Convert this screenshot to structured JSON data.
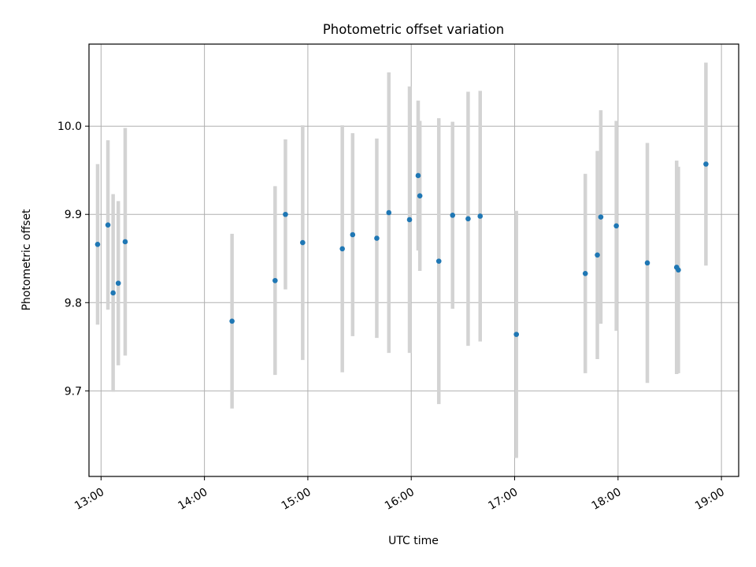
{
  "chart_data": {
    "type": "scatter",
    "title": "Photometric offset variation",
    "xlabel": "UTC time",
    "ylabel": "Photometric offset",
    "grid": true,
    "xlim": [
      "12:53",
      "19:10"
    ],
    "ylim": [
      9.603,
      10.093
    ],
    "x_ticks": [
      "13:00",
      "14:00",
      "15:00",
      "16:00",
      "17:00",
      "18:00",
      "19:00"
    ],
    "y_ticks": [
      "9.7",
      "9.8",
      "9.9",
      "10.0"
    ],
    "colors": {
      "points": "#1f77b4",
      "errorbars": "#d3d3d3",
      "grid": "#b0b0b0"
    },
    "points": [
      {
        "x": "12:58",
        "y": 9.866,
        "err": 0.091
      },
      {
        "x": "13:04",
        "y": 9.888,
        "err": 0.096
      },
      {
        "x": "13:07",
        "y": 9.811,
        "err": 0.112
      },
      {
        "x": "13:10",
        "y": 9.822,
        "err": 0.093
      },
      {
        "x": "13:14",
        "y": 9.869,
        "err": 0.129
      },
      {
        "x": "14:16",
        "y": 9.779,
        "err": 0.099
      },
      {
        "x": "14:41",
        "y": 9.825,
        "err": 0.107
      },
      {
        "x": "14:47",
        "y": 9.9,
        "err": 0.085
      },
      {
        "x": "14:57",
        "y": 9.868,
        "err": 0.133
      },
      {
        "x": "15:20",
        "y": 9.861,
        "err": 0.14
      },
      {
        "x": "15:26",
        "y": 9.877,
        "err": 0.115
      },
      {
        "x": "15:40",
        "y": 9.873,
        "err": 0.113
      },
      {
        "x": "15:47",
        "y": 9.902,
        "err": 0.159
      },
      {
        "x": "15:59",
        "y": 9.894,
        "err": 0.151
      },
      {
        "x": "16:04",
        "y": 9.944,
        "err": 0.085
      },
      {
        "x": "16:05",
        "y": 9.921,
        "err": 0.085
      },
      {
        "x": "16:16",
        "y": 9.847,
        "err": 0.162
      },
      {
        "x": "16:24",
        "y": 9.899,
        "err": 0.106
      },
      {
        "x": "16:33",
        "y": 9.895,
        "err": 0.144
      },
      {
        "x": "16:40",
        "y": 9.898,
        "err": 0.142
      },
      {
        "x": "17:01",
        "y": 9.764,
        "err": 0.14
      },
      {
        "x": "17:41",
        "y": 9.833,
        "err": 0.113
      },
      {
        "x": "17:48",
        "y": 9.854,
        "err": 0.118
      },
      {
        "x": "17:50",
        "y": 9.897,
        "err": 0.121
      },
      {
        "x": "17:59",
        "y": 9.887,
        "err": 0.119
      },
      {
        "x": "18:17",
        "y": 9.845,
        "err": 0.136
      },
      {
        "x": "18:34",
        "y": 9.84,
        "err": 0.121
      },
      {
        "x": "18:35",
        "y": 9.837,
        "err": 0.117
      },
      {
        "x": "18:51",
        "y": 9.957,
        "err": 0.115
      }
    ]
  }
}
